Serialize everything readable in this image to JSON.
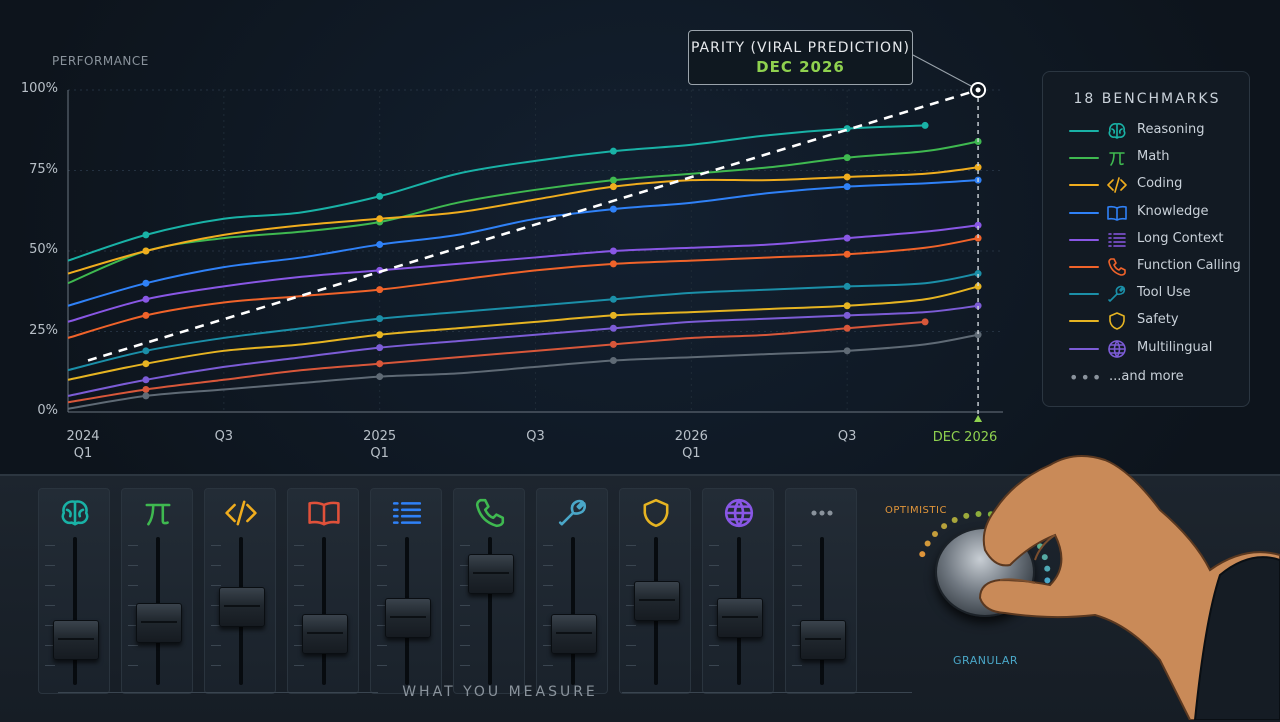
{
  "chart_data": {
    "type": "line",
    "ylabel": "PERFORMANCE",
    "ylim": [
      0,
      100
    ],
    "yticks": [
      "100%",
      "75%",
      "50%",
      "25%",
      "0%"
    ],
    "x_ticks": [
      {
        "top": "2024",
        "bottom": "Q1"
      },
      {
        "top": "Q3",
        "bottom": ""
      },
      {
        "top": "2025",
        "bottom": "Q1"
      },
      {
        "top": "Q3",
        "bottom": ""
      },
      {
        "top": "2026",
        "bottom": "Q1"
      },
      {
        "top": "Q3",
        "bottom": ""
      }
    ],
    "x_target_label": "DEC 2026",
    "series": [
      {
        "name": "Reasoning",
        "color": "#19b2a6",
        "x": [
          2024.0,
          2024.25,
          2024.5,
          2024.75,
          2025.0,
          2025.25,
          2025.5,
          2025.75,
          2026.0,
          2026.25,
          2026.5,
          2026.75
        ],
        "y": [
          47,
          55,
          60,
          62,
          67,
          74,
          78,
          81,
          83,
          86,
          88,
          89
        ]
      },
      {
        "name": "Math",
        "color": "#3fb950",
        "x": [
          2024.0,
          2024.25,
          2024.5,
          2024.75,
          2025.0,
          2025.25,
          2025.5,
          2025.75,
          2026.0,
          2026.25,
          2026.5,
          2026.75,
          2026.92
        ],
        "y": [
          40,
          50,
          54,
          56,
          59,
          65,
          69,
          72,
          74,
          76,
          79,
          81,
          84
        ]
      },
      {
        "name": "Coding",
        "color": "#f0ad1e",
        "x": [
          2024.0,
          2024.25,
          2024.5,
          2024.75,
          2025.0,
          2025.25,
          2025.5,
          2025.75,
          2026.0,
          2026.25,
          2026.5,
          2026.75,
          2026.92
        ],
        "y": [
          43,
          50,
          55,
          58,
          60,
          62,
          66,
          70,
          72,
          72,
          73,
          74,
          76
        ]
      },
      {
        "name": "Knowledge",
        "color": "#2f81f7",
        "x": [
          2024.0,
          2024.25,
          2024.5,
          2024.75,
          2025.0,
          2025.25,
          2025.5,
          2025.75,
          2026.0,
          2026.25,
          2026.5,
          2026.75,
          2026.92
        ],
        "y": [
          33,
          40,
          45,
          48,
          52,
          55,
          60,
          63,
          65,
          68,
          70,
          71,
          72
        ]
      },
      {
        "name": "Long Context",
        "color": "#8957e5",
        "x": [
          2024.0,
          2024.25,
          2024.5,
          2024.75,
          2025.0,
          2025.25,
          2025.5,
          2025.75,
          2026.0,
          2026.25,
          2026.5,
          2026.75,
          2026.92
        ],
        "y": [
          28,
          35,
          39,
          42,
          44,
          46,
          48,
          50,
          51,
          52,
          54,
          56,
          58
        ]
      },
      {
        "name": "Function Calling",
        "color": "#f0632a",
        "x": [
          2024.0,
          2024.25,
          2024.5,
          2024.75,
          2025.0,
          2025.25,
          2025.5,
          2025.75,
          2026.0,
          2026.25,
          2026.5,
          2026.75,
          2026.92
        ],
        "y": [
          23,
          30,
          34,
          36,
          38,
          41,
          44,
          46,
          47,
          48,
          49,
          51,
          54
        ]
      },
      {
        "name": "Tool Use",
        "color": "#1b8fa8",
        "x": [
          2024.0,
          2024.25,
          2024.5,
          2024.75,
          2025.0,
          2025.25,
          2025.5,
          2025.75,
          2026.0,
          2026.25,
          2026.5,
          2026.75,
          2026.92
        ],
        "y": [
          13,
          19,
          23,
          26,
          29,
          31,
          33,
          35,
          37,
          38,
          39,
          40,
          43
        ]
      },
      {
        "name": "Safety",
        "color": "#e6b422",
        "x": [
          2024.0,
          2024.25,
          2024.5,
          2024.75,
          2025.0,
          2025.25,
          2025.5,
          2025.75,
          2026.0,
          2026.25,
          2026.5,
          2026.75,
          2026.92
        ],
        "y": [
          10,
          15,
          19,
          21,
          24,
          26,
          28,
          30,
          31,
          32,
          33,
          35,
          39
        ]
      },
      {
        "name": "Multilingual",
        "color": "#7c5cd6",
        "x": [
          2024.0,
          2024.25,
          2024.5,
          2024.75,
          2025.0,
          2025.25,
          2025.5,
          2025.75,
          2026.0,
          2026.25,
          2026.5,
          2026.75,
          2026.92
        ],
        "y": [
          5,
          10,
          14,
          17,
          20,
          22,
          24,
          26,
          28,
          29,
          30,
          31,
          33
        ]
      },
      {
        "name": "",
        "color": "#d8573a",
        "x": [
          2024.0,
          2024.25,
          2024.5,
          2024.75,
          2025.0,
          2025.25,
          2025.5,
          2025.75,
          2026.0,
          2026.25,
          2026.5,
          2026.75
        ],
        "y": [
          3,
          7,
          10,
          13,
          15,
          17,
          19,
          21,
          23,
          24,
          26,
          28
        ]
      },
      {
        "name": "",
        "color": "#5f6a75",
        "x": [
          2024.0,
          2024.25,
          2024.5,
          2024.75,
          2025.0,
          2025.25,
          2025.5,
          2025.75,
          2026.0,
          2026.25,
          2026.5,
          2026.75,
          2026.92
        ],
        "y": [
          1,
          5,
          7,
          9,
          11,
          12,
          14,
          16,
          17,
          18,
          19,
          21,
          24
        ]
      }
    ],
    "prediction_line": {
      "x": [
        2024.0,
        2026.92
      ],
      "y": [
        14,
        100
      ]
    }
  },
  "callout": {
    "line1": "PARITY (VIRAL PREDICTION)",
    "line2": "DEC 2026"
  },
  "legend": {
    "title": "18 BENCHMARKS",
    "items": [
      {
        "label": "Reasoning",
        "icon": "brain-icon",
        "color": "#19b2a6"
      },
      {
        "label": "Math",
        "icon": "pi-icon",
        "color": "#3fb950"
      },
      {
        "label": "Coding",
        "icon": "code-icon",
        "color": "#f0ad1e"
      },
      {
        "label": "Knowledge",
        "icon": "book-icon",
        "color": "#2f81f7"
      },
      {
        "label": "Long Context",
        "icon": "list-icon",
        "color": "#8957e5"
      },
      {
        "label": "Function Calling",
        "icon": "phone-icon",
        "color": "#f0632a"
      },
      {
        "label": "Tool Use",
        "icon": "wrench-icon",
        "color": "#1b8fa8"
      },
      {
        "label": "Safety",
        "icon": "shield-icon",
        "color": "#e6b422"
      },
      {
        "label": "Multilingual",
        "icon": "globe-icon",
        "color": "#7c5cd6"
      }
    ],
    "more_label": "...and more"
  },
  "mixer": {
    "label": "WHAT YOU MEASURE",
    "channels": [
      {
        "icon": "brain-icon",
        "color": "#19b2a6",
        "level": 0.25
      },
      {
        "icon": "pi-icon",
        "color": "#3fb950",
        "level": 0.4
      },
      {
        "icon": "code-icon",
        "color": "#f0ad1e",
        "level": 0.55
      },
      {
        "icon": "book-icon",
        "color": "#e0513a",
        "level": 0.3
      },
      {
        "icon": "list-icon",
        "color": "#2f81f7",
        "level": 0.45
      },
      {
        "icon": "phone-icon",
        "color": "#3fb950",
        "level": 0.85
      },
      {
        "icon": "wrench-icon",
        "color": "#4aa7c8",
        "level": 0.3
      },
      {
        "icon": "shield-icon",
        "color": "#e6b422",
        "level": 0.6
      },
      {
        "icon": "globe-icon",
        "color": "#8957e5",
        "level": 0.45
      },
      {
        "icon": "more-icon",
        "color": "#8a939c",
        "level": 0.25
      }
    ],
    "dial": {
      "top_label": "OPTIMISTIC",
      "bottom_label": "GRANULAR"
    }
  }
}
